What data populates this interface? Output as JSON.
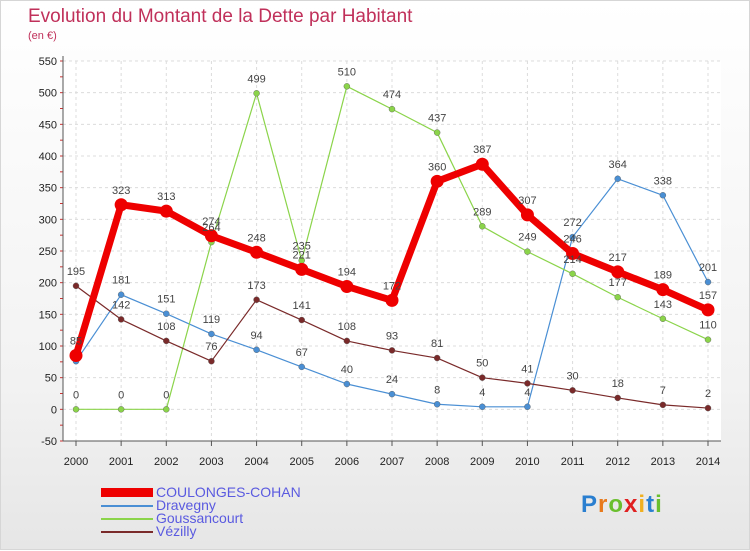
{
  "title": "Evolution du Montant de la Dette par Habitant",
  "unit": "(en €)",
  "logo": {
    "text": "Proxiti",
    "colors": [
      "#2a7fd0",
      "#e87a1c",
      "#6abf2e",
      "#e02020",
      "#f0b020",
      "#2a7fd0",
      "#6abf2e"
    ]
  },
  "chart_data": {
    "type": "line",
    "x": [
      "2000",
      "2001",
      "2002",
      "2003",
      "2004",
      "2005",
      "2006",
      "2007",
      "2008",
      "2009",
      "2010",
      "2011",
      "2012",
      "2013",
      "2014"
    ],
    "ylim": [
      -50,
      550
    ],
    "yticks": [
      "-50",
      "0",
      "50",
      "100",
      "150",
      "200",
      "250",
      "300",
      "350",
      "400",
      "450",
      "500",
      "550"
    ],
    "grid": true,
    "legend_position": "bottom-left",
    "series": [
      {
        "name": "COULONGES-COHAN",
        "color": "#ee0000",
        "emphasis": true,
        "values": [
          85,
          323,
          313,
          274,
          248,
          221,
          194,
          172,
          360,
          387,
          307,
          246,
          217,
          189,
          157
        ],
        "labels": [
          "85",
          "323",
          "313",
          "274",
          "248",
          "221",
          "194",
          "172",
          "360",
          "387",
          "307",
          "246",
          "217",
          "189",
          "157"
        ]
      },
      {
        "name": "Dravegny",
        "color": "#4a8fd4",
        "values": [
          76,
          181,
          151,
          119,
          94,
          67,
          40,
          24,
          8,
          4,
          4,
          272,
          364,
          338,
          201
        ],
        "labels": [
          "",
          "181",
          "151",
          "119",
          "94",
          "67",
          "40",
          "24",
          "8",
          "4",
          "4",
          "272",
          "364",
          "338",
          "201"
        ]
      },
      {
        "name": "Goussancourt",
        "color": "#8bd44a",
        "values": [
          0,
          0,
          0,
          264,
          499,
          235,
          510,
          474,
          437,
          289,
          249,
          214,
          177,
          143,
          110
        ],
        "labels": [
          "0",
          "0",
          "0",
          "264",
          "499",
          "235",
          "510",
          "474",
          "437",
          "289",
          "249",
          "214",
          "177",
          "143",
          "110"
        ]
      },
      {
        "name": "Vézilly",
        "color": "#7a2a2a",
        "values": [
          195,
          142,
          108,
          76,
          173,
          141,
          108,
          93,
          81,
          50,
          41,
          30,
          18,
          7,
          2
        ],
        "labels": [
          "195",
          "142",
          "108",
          "76",
          "173",
          "141",
          "108",
          "93",
          "81",
          "50",
          "41",
          "30",
          "18",
          "7",
          "2"
        ]
      }
    ]
  }
}
